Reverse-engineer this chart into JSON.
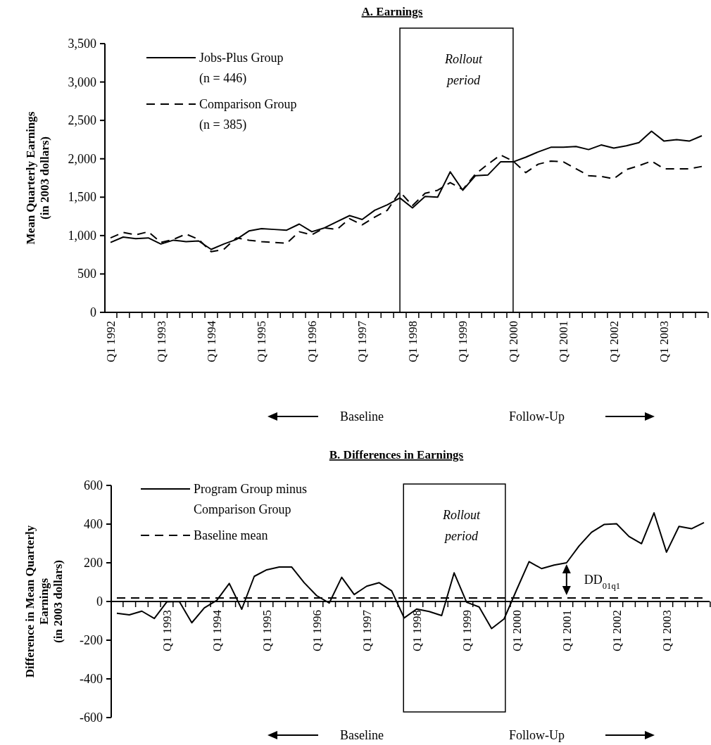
{
  "chart_data": [
    {
      "type": "line",
      "title": "A. Earnings",
      "ylabel": "Mean Quarterly Earnings\n(in 2003 dollars)",
      "categories": [
        "Q1 1992",
        null,
        null,
        null,
        "Q1 1993",
        null,
        null,
        null,
        "Q1 1994",
        null,
        null,
        null,
        "Q1 1995",
        null,
        null,
        null,
        "Q1 1996",
        null,
        null,
        null,
        "Q1 1997",
        null,
        null,
        null,
        "Q1 1998",
        null,
        null,
        null,
        "Q1 1999",
        null,
        null,
        null,
        "Q1 2000",
        null,
        null,
        null,
        "Q1 2001",
        null,
        null,
        null,
        "Q1 2002",
        null,
        null,
        null,
        "Q1 2003",
        null,
        null,
        null
      ],
      "series": [
        {
          "name": "Jobs-Plus Group\n(n = 446)",
          "color": "#000000",
          "line_style": "solid",
          "values": [
            910,
            980,
            960,
            970,
            890,
            940,
            920,
            930,
            820,
            890,
            950,
            1060,
            1090,
            1080,
            1070,
            1150,
            1050,
            1100,
            1180,
            1260,
            1210,
            1330,
            1400,
            1490,
            1360,
            1510,
            1500,
            1830,
            1590,
            1780,
            1790,
            1960,
            1960,
            2020,
            2090,
            2150,
            2150,
            2160,
            2120,
            2180,
            2140,
            2170,
            2210,
            2360,
            2230,
            2250,
            2230,
            2300
          ]
        },
        {
          "name": "Comparison Group\n(n = 385)",
          "color": "#000000",
          "line_style": "dashed",
          "values": [
            970,
            1040,
            1010,
            1050,
            910,
            950,
            1020,
            950,
            790,
            820,
            970,
            940,
            920,
            910,
            900,
            1050,
            1010,
            1100,
            1080,
            1220,
            1140,
            1240,
            1330,
            1570,
            1390,
            1550,
            1590,
            1690,
            1600,
            1800,
            1930,
            2050,
            1970,
            1820,
            1930,
            1970,
            1960,
            1870,
            1780,
            1770,
            1740,
            1860,
            1910,
            1970,
            1870,
            1870,
            1870,
            1900
          ]
        }
      ],
      "ylim": [
        0,
        3500
      ],
      "yticks": [
        0,
        500,
        {
          "value": 1000,
          "label": "1,000"
        },
        {
          "value": 1500,
          "label": "1,500"
        },
        {
          "value": 2000,
          "label": "2,000"
        },
        {
          "value": 2500,
          "label": "2,500"
        },
        {
          "value": 3000,
          "label": "3,000"
        },
        {
          "value": 3500,
          "label": "3,500"
        }
      ],
      "annotations": [
        "Rollout period",
        "Baseline",
        "Follow-Up"
      ],
      "legend": "top left"
    },
    {
      "type": "line",
      "title": "B. Differences in Earnings",
      "ylabel": "Difference in Mean Quarterly\nEarnings\n(in 2003 dollars)",
      "categories": [
        null,
        null,
        null,
        null,
        "Q1 1993",
        null,
        null,
        null,
        "Q1 1994",
        null,
        null,
        null,
        "Q1 1995",
        null,
        null,
        null,
        "Q1 1996",
        null,
        null,
        null,
        "Q1 1997",
        null,
        null,
        null,
        "Q1 1998",
        null,
        null,
        null,
        "Q1 1999",
        null,
        null,
        null,
        "Q1 2000",
        null,
        null,
        null,
        "Q1 2001",
        null,
        null,
        null,
        "Q1 2002",
        null,
        null,
        null,
        "Q1 2003",
        null,
        null,
        null
      ],
      "series": [
        {
          "name": "Program Group minus\nComparison Group",
          "color": "#000000",
          "line_style": "solid",
          "values": [
            -61,
            -69,
            -50,
            -88,
            -2,
            0,
            -110,
            -33,
            6,
            93,
            -40,
            130,
            164,
            178,
            178,
            97,
            30,
            -8,
            125,
            36,
            79,
            97,
            55,
            -85,
            -39,
            -52,
            -73,
            148,
            -4,
            -28,
            -140,
            -90,
            60,
            206,
            170,
            188,
            200,
            287,
            358,
            398,
            402,
            336,
            299,
            458,
            255,
            388,
            376,
            408
          ]
        },
        {
          "name": "Baseline mean",
          "color": "#000000",
          "line_style": "dashed",
          "values": [
            18,
            18,
            18,
            18,
            18,
            18,
            18,
            18,
            18,
            18,
            18,
            18,
            18,
            18,
            18,
            18,
            18,
            18,
            18,
            18,
            18,
            18,
            18,
            18,
            18,
            18,
            18,
            18,
            18,
            18,
            18,
            18,
            18,
            18,
            18,
            18,
            18,
            18,
            18,
            18,
            18,
            18,
            18,
            18,
            18,
            18,
            18,
            18
          ]
        }
      ],
      "ylim": [
        -600,
        600
      ],
      "yticks": [
        -600,
        -400,
        -200,
        0,
        200,
        400,
        600
      ],
      "annotations": [
        "Rollout period",
        "DD$_{01q1}$",
        "Baseline",
        "Follow-Up"
      ],
      "legend": "top left"
    }
  ]
}
